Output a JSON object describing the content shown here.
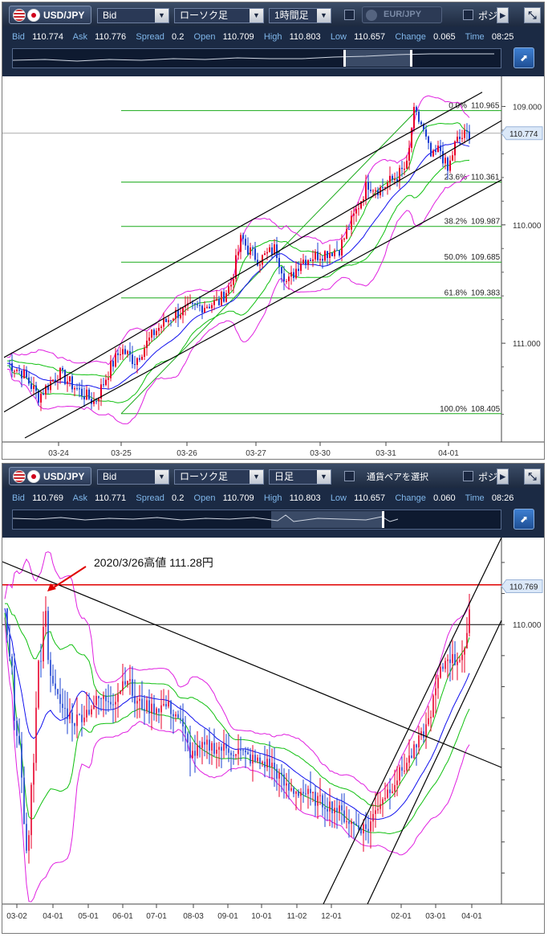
{
  "panel1": {
    "pair": "USD/JPY",
    "price_type": "Bid",
    "chart_type": "ローソク足",
    "interval": "1時間足",
    "compare_pair": "EUR/JPY",
    "position_label": "ポジシ",
    "labels": {
      "bid": "Bid",
      "ask": "Ask",
      "spread": "Spread",
      "open": "Open",
      "high": "High",
      "low": "Low",
      "change": "Change",
      "time": "Time"
    },
    "stats": {
      "bid": "110.774",
      "ask": "110.776",
      "spread": "0.2",
      "open": "110.709",
      "high": "110.803",
      "low": "110.657",
      "change": "0.065",
      "time": "08:25"
    },
    "current_price": "110.774",
    "yticks": [
      "111.000",
      "110.000",
      "109.000"
    ],
    "xticks": [
      "03-24",
      "03-25",
      "03-26",
      "03-27",
      "03-30",
      "03-31",
      "04-01"
    ],
    "fib": [
      {
        "pct": "0.0%",
        "price": "110.965"
      },
      {
        "pct": "23.6%",
        "price": "110.361"
      },
      {
        "pct": "38.2%",
        "price": "109.987"
      },
      {
        "pct": "50.0%",
        "price": "109.685"
      },
      {
        "pct": "61.8%",
        "price": "109.383"
      },
      {
        "pct": "100.0%",
        "price": "108.405"
      }
    ]
  },
  "panel2": {
    "pair": "USD/JPY",
    "price_type": "Bid",
    "chart_type": "ローソク足",
    "interval": "日足",
    "pair_select": "通貨ペアを選択",
    "position_label": "ポジシ",
    "labels": {
      "bid": "Bid",
      "ask": "Ask",
      "spread": "Spread",
      "open": "Open",
      "high": "High",
      "low": "Low",
      "change": "Change",
      "time": "Time"
    },
    "stats": {
      "bid": "110.769",
      "ask": "110.771",
      "spread": "0.2",
      "open": "110.709",
      "high": "110.803",
      "low": "110.657",
      "change": "0.060",
      "time": "08:26"
    },
    "current_price": "110.769",
    "yticks": [
      "110.000"
    ],
    "xticks": [
      "03-02",
      "04-01",
      "05-01",
      "06-01",
      "07-01",
      "08-03",
      "09-01",
      "10-01",
      "11-02",
      "12-01",
      "02-01",
      "03-01",
      "04-01"
    ],
    "annotation": "2020/3/26高値 111.28円"
  },
  "colors": {
    "up": "#e8002a",
    "down": "#1a3fd0",
    "band_outer": "#e020e0",
    "band_inner": "#10c010",
    "ma": "#1010ee",
    "fib_line": "#1aaa1a",
    "channel": "#000000",
    "resistance": "#e00000",
    "toolbar": "#1b2a44"
  },
  "chart_data": [
    {
      "type": "candlestick",
      "pair": "USD/JPY",
      "interval": "1時間足",
      "x": [
        "03-24",
        "03-25",
        "03-26",
        "03-27",
        "03-30",
        "03-31",
        "04-01"
      ],
      "ylim": [
        108.2,
        111.2
      ],
      "yticks": [
        109.0,
        110.0,
        111.0
      ],
      "series": [
        {
          "name": "close",
          "approx_by_day": [
            108.5,
            108.8,
            109.3,
            109.9,
            109.8,
            110.4,
            110.77
          ]
        }
      ],
      "current": 110.774,
      "fibonacci": {
        "0.0%": 110.965,
        "23.6%": 110.361,
        "38.2%": 109.987,
        "50.0%": 109.685,
        "61.8%": 109.383,
        "100.0%": 108.405
      }
    },
    {
      "type": "candlestick",
      "pair": "USD/JPY",
      "interval": "日足",
      "x": [
        "03-02",
        "04-01",
        "05-01",
        "06-01",
        "07-01",
        "08-03",
        "09-01",
        "10-01",
        "11-02",
        "12-01",
        "02-01",
        "03-01",
        "04-01"
      ],
      "yticks": [
        110.0
      ],
      "current": 110.769,
      "resistance": 111.28,
      "annotation": "2020/3/26高値 111.28円"
    }
  ]
}
